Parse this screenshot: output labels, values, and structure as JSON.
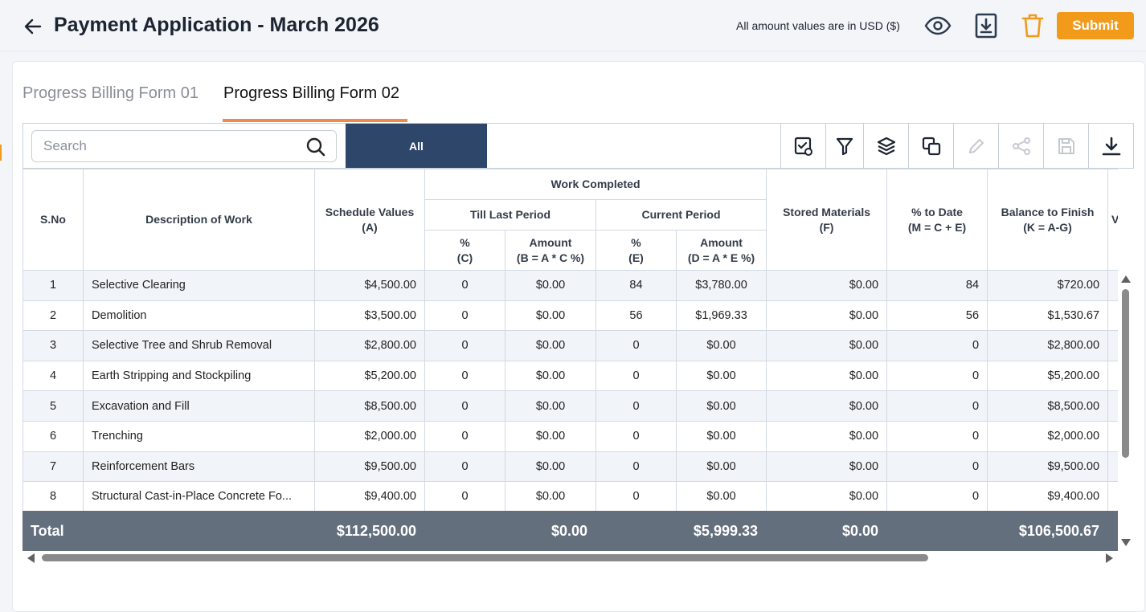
{
  "header": {
    "title": "Payment Application - March 2026",
    "currency_note": "All amount values are in USD ($)",
    "submit_label": "Submit"
  },
  "tabs": [
    {
      "label": "Progress Billing Form 01",
      "active": false
    },
    {
      "label": "Progress Billing Form 02",
      "active": true
    }
  ],
  "toolbar": {
    "search_placeholder": "Search",
    "filter_label": "All"
  },
  "colors": {
    "accent_orange": "#f29a1a",
    "tab_underline": "#f08a4b",
    "navy": "#2d4669",
    "total_bar": "#646f7e"
  },
  "table": {
    "headers": {
      "sno": "S.No",
      "description": "Description of Work",
      "schedule_values": "Schedule Values",
      "schedule_values_sub": "(A)",
      "work_completed": "Work Completed",
      "till_last_period": "Till Last Period",
      "current_period": "Current Period",
      "pct": "%",
      "pct_c": "(C)",
      "amount": "Amount",
      "amount_b": "(B = A * C %)",
      "pct_e": "(E)",
      "amount_d": "(D = A * E %)",
      "stored_materials": "Stored Materials",
      "stored_materials_sub": "(F)",
      "pct_to_date": "% to Date",
      "pct_to_date_sub": "(M = C + E)",
      "balance_to_finish": "Balance to Finish",
      "balance_to_finish_sub": "(K = A-G)",
      "next_col_partial": "V"
    },
    "rows": [
      {
        "sno": "1",
        "description": "Selective Clearing",
        "schedule": "$4,500.00",
        "c": "0",
        "b": "$0.00",
        "e": "84",
        "d": "$3,780.00",
        "f": "$0.00",
        "m": "84",
        "k": "$720.00"
      },
      {
        "sno": "2",
        "description": "Demolition",
        "schedule": "$3,500.00",
        "c": "0",
        "b": "$0.00",
        "e": "56",
        "d": "$1,969.33",
        "f": "$0.00",
        "m": "56",
        "k": "$1,530.67"
      },
      {
        "sno": "3",
        "description": "Selective Tree and Shrub Removal",
        "schedule": "$2,800.00",
        "c": "0",
        "b": "$0.00",
        "e": "0",
        "d": "$0.00",
        "f": "$0.00",
        "m": "0",
        "k": "$2,800.00"
      },
      {
        "sno": "4",
        "description": "Earth Stripping and Stockpiling",
        "schedule": "$5,200.00",
        "c": "0",
        "b": "$0.00",
        "e": "0",
        "d": "$0.00",
        "f": "$0.00",
        "m": "0",
        "k": "$5,200.00"
      },
      {
        "sno": "5",
        "description": "Excavation and Fill",
        "schedule": "$8,500.00",
        "c": "0",
        "b": "$0.00",
        "e": "0",
        "d": "$0.00",
        "f": "$0.00",
        "m": "0",
        "k": "$8,500.00"
      },
      {
        "sno": "6",
        "description": "Trenching",
        "schedule": "$2,000.00",
        "c": "0",
        "b": "$0.00",
        "e": "0",
        "d": "$0.00",
        "f": "$0.00",
        "m": "0",
        "k": "$2,000.00"
      },
      {
        "sno": "7",
        "description": "Reinforcement Bars",
        "schedule": "$9,500.00",
        "c": "0",
        "b": "$0.00",
        "e": "0",
        "d": "$0.00",
        "f": "$0.00",
        "m": "0",
        "k": "$9,500.00"
      },
      {
        "sno": "8",
        "description": "Structural Cast-in-Place Concrete Fo...",
        "schedule": "$9,400.00",
        "c": "0",
        "b": "$0.00",
        "e": "0",
        "d": "$0.00",
        "f": "$0.00",
        "m": "0",
        "k": "$9,400.00"
      }
    ],
    "totals": {
      "label": "Total",
      "schedule": "$112,500.00",
      "b": "$0.00",
      "d": "$5,999.33",
      "f": "$0.00",
      "k": "$106,500.67"
    }
  },
  "icons": {
    "back": "arrow-left-icon",
    "view": "eye-icon",
    "download_doc": "file-download-icon",
    "delete": "trash-icon",
    "search": "search-icon",
    "tools": [
      "checklist-icon",
      "filter-icon",
      "layers-icon",
      "copy-icon",
      "pencil-icon",
      "share-icon",
      "save-icon",
      "download-icon"
    ]
  }
}
